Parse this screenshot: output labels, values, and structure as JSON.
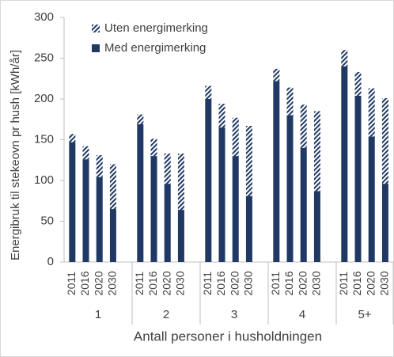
{
  "chart_data": {
    "type": "bar",
    "stacked": true,
    "y_label": "Energibruk til stekeovn pr hush [kWh/år]",
    "x_label": "Antall personer i husholdningen",
    "categories": [
      "2011",
      "2016",
      "2020",
      "2030",
      "2011",
      "2016",
      "2020",
      "2030",
      "2011",
      "2016",
      "2020",
      "2030",
      "2011",
      "2016",
      "2020",
      "2030",
      "2011",
      "2016",
      "2020",
      "2030"
    ],
    "category_groups": [
      "1",
      "2",
      "3",
      "4",
      "5+"
    ],
    "series": [
      {
        "name": "Med energimerking",
        "color": "#1f3864",
        "pattern": "solid",
        "values": [
          147,
          126,
          104,
          65,
          169,
          130,
          96,
          64,
          200,
          165,
          130,
          81,
          222,
          180,
          140,
          87,
          240,
          204,
          154,
          96
        ]
      },
      {
        "name": "Uten energimerking",
        "color": "#1f3864",
        "pattern": "hatch",
        "values": [
          10,
          16,
          27,
          55,
          12,
          21,
          37,
          69,
          16,
          29,
          47,
          86,
          15,
          34,
          53,
          98,
          20,
          29,
          59,
          105
        ]
      }
    ],
    "legend_order": [
      1,
      0
    ],
    "ylim": [
      0,
      300
    ],
    "yticks": [
      0,
      50,
      100,
      150,
      200,
      250,
      300
    ]
  }
}
